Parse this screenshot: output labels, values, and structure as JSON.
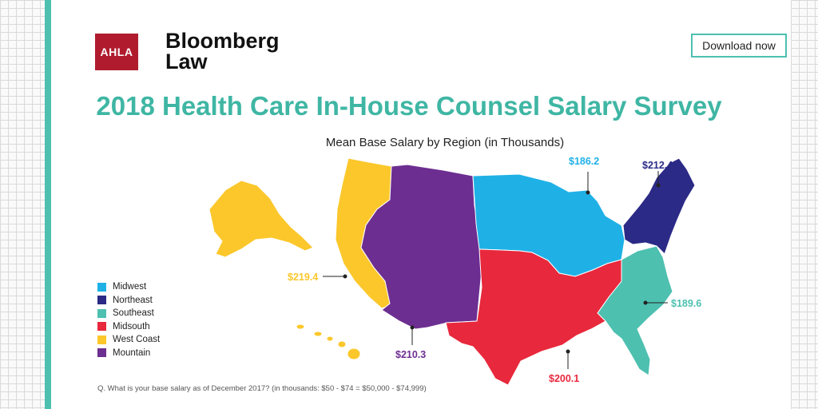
{
  "header": {
    "ahla_logo": "AHLA",
    "bloomberg_line1": "Bloomberg",
    "bloomberg_line2": "Law",
    "download_label": "Download now"
  },
  "title": "2018 Health Care In-House Counsel Salary Survey",
  "footnote": "Q. What is your base salary as of December 2017? (in thousands: $50 - $74 = $50,000 - $74,999)",
  "chart_data": {
    "type": "map",
    "title": "Mean Base Salary by Region (in Thousands)",
    "regions": [
      {
        "name": "Midwest",
        "value": 186.2,
        "label": "$186.2",
        "color": "#1fb1e6"
      },
      {
        "name": "Northeast",
        "value": 212.4,
        "label": "$212.4",
        "color": "#2b2a86"
      },
      {
        "name": "Southeast",
        "value": 189.6,
        "label": "$189.6",
        "color": "#4dc0b0"
      },
      {
        "name": "Midsouth",
        "value": 200.1,
        "label": "$200.1",
        "color": "#e8283c"
      },
      {
        "name": "West Coast",
        "value": 219.4,
        "label": "$219.4",
        "color": "#fbc72b"
      },
      {
        "name": "Mountain",
        "value": 210.3,
        "label": "$210.3",
        "color": "#6d2e91"
      }
    ]
  }
}
